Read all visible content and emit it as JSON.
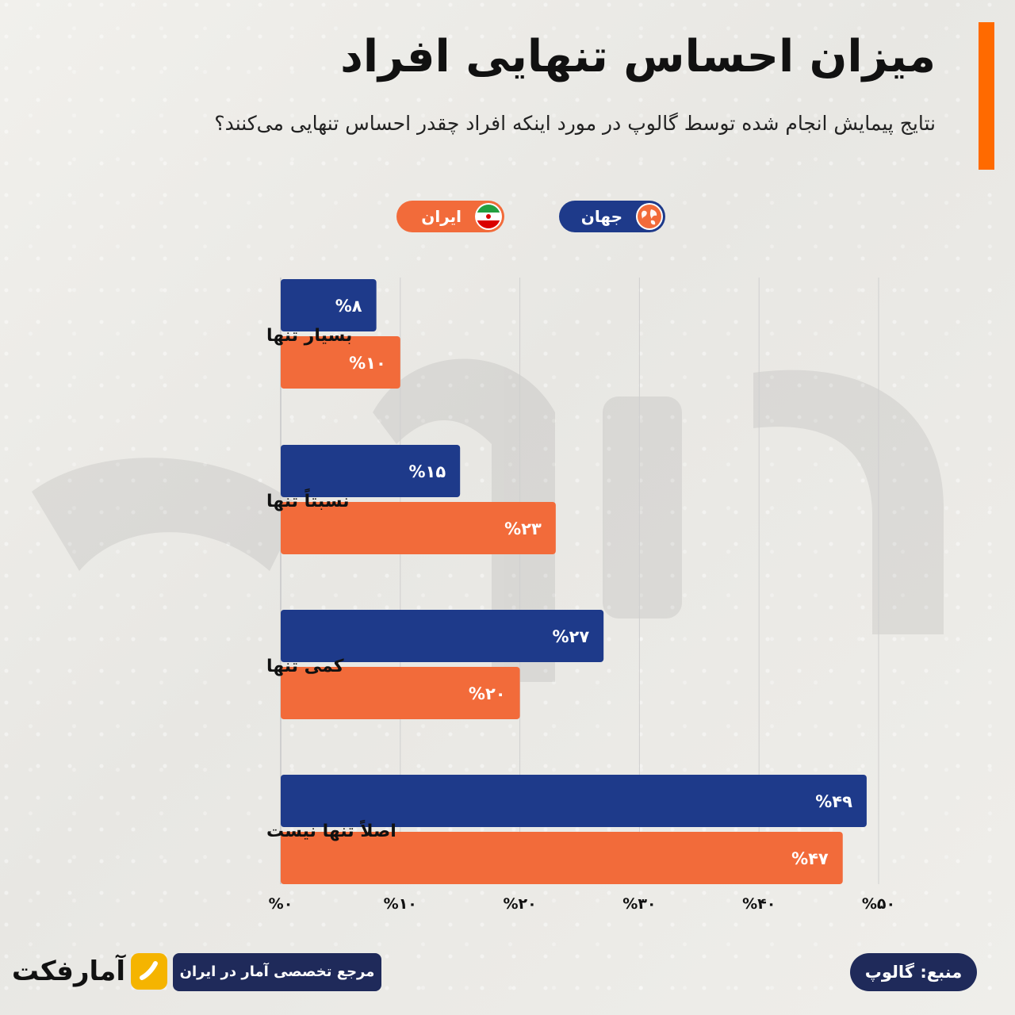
{
  "header": {
    "title": "میزان احساس تنهایی افراد",
    "subtitle": "نتایج پیمایش انجام شده توسط گالوپ در مورد اینکه افراد چقدر احساس تنهایی می‌کنند؟"
  },
  "legend": {
    "world_label": "جهان",
    "iran_label": "ایران",
    "world_icon": "globe-icon",
    "iran_icon": "iran-flag-icon"
  },
  "colors": {
    "accent": "#ff6a00",
    "world": "#1e3a8a",
    "iran": "#f26b3a",
    "grid": "#cfcfcf",
    "text": "#111111"
  },
  "chart_data": {
    "type": "bar",
    "orientation": "horizontal",
    "categories": [
      "بسیار تنها",
      "نسبتاً تنها",
      "کمی تنها",
      "اصلاً تنها نیست"
    ],
    "series": [
      {
        "name": "جهان",
        "values": [
          8,
          15,
          27,
          49
        ],
        "labels": [
          "%۸",
          "%۱۵",
          "%۲۷",
          "%۴۹"
        ]
      },
      {
        "name": "ایران",
        "values": [
          10,
          23,
          20,
          47
        ],
        "labels": [
          "%۱۰",
          "%۲۳",
          "%۲۰",
          "%۴۷"
        ]
      }
    ],
    "xlim": [
      0,
      50
    ],
    "x_ticks": [
      0,
      10,
      20,
      30,
      40,
      50
    ],
    "x_tick_labels": [
      "%۰",
      "%۱۰",
      "%۲۰",
      "%۳۰",
      "%۴۰",
      "%۵۰"
    ],
    "grid": true,
    "legend_position": "top"
  },
  "footer": {
    "source": "منبع: گالوپ",
    "tagline": "مرجع تخصصی آمار در ایران",
    "logo_text": "آمارفکت",
    "logo_icon": "amarfact-logo-icon"
  }
}
